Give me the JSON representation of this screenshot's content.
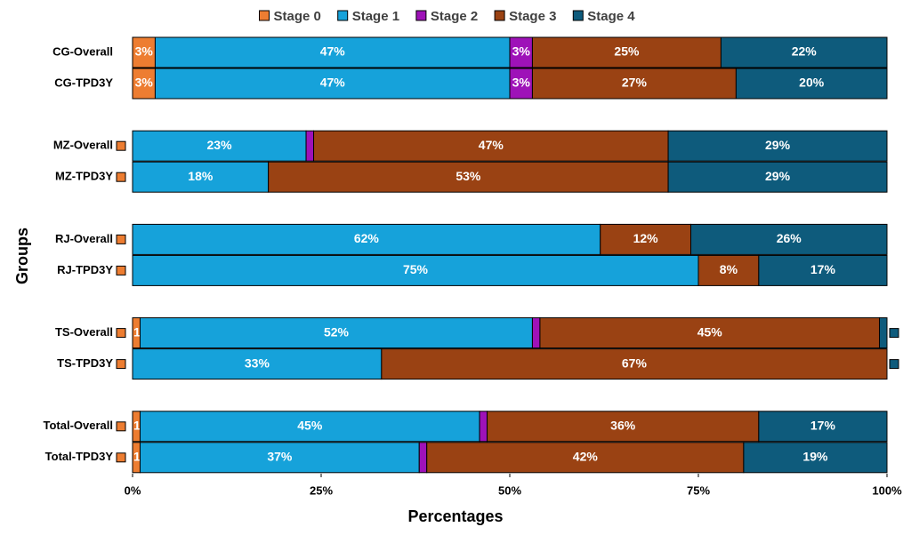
{
  "chart_data": {
    "type": "stacked_barh",
    "x_label": "Percentages",
    "y_label": "Groups",
    "categories": [
      "CG-Overall",
      "CG-TPD3Y",
      "MZ-Overall",
      "MZ-TPD3Y",
      "RJ-Overall",
      "RJ-TPD3Y",
      "TS-Overall",
      "TS-TPD3Y",
      "Total-Overall",
      "Total-TPD3Y"
    ],
    "series": [
      {
        "name": "Stage 0",
        "color": "#ED7D31",
        "values": [
          3,
          3,
          0,
          0,
          0,
          0,
          1,
          0,
          1,
          1
        ],
        "value_labels": [
          "3%",
          "3%",
          "0%",
          "0%",
          "0%",
          "0%",
          "1%",
          "0%",
          "1%",
          "1%"
        ]
      },
      {
        "name": "Stage 1",
        "color": "#16A2DA",
        "values": [
          47,
          47,
          23,
          18,
          62,
          75,
          52,
          33,
          45,
          37
        ],
        "value_labels": [
          "47%",
          "47%",
          "23%",
          "18%",
          "62%",
          "75%",
          "52%",
          "33%",
          "45%",
          "37%"
        ]
      },
      {
        "name": "Stage 2",
        "color": "#9E12B8",
        "values": [
          3,
          3,
          1,
          0,
          0,
          0,
          1,
          0,
          1,
          1
        ],
        "value_labels": [
          "3%",
          "3%",
          "1%",
          "0%",
          "0%",
          "0%",
          "1%",
          "0%",
          "1%",
          "1%"
        ]
      },
      {
        "name": "Stage 3",
        "color": "#9A4213",
        "values": [
          25,
          27,
          47,
          53,
          12,
          8,
          45,
          67,
          36,
          42
        ],
        "value_labels": [
          "25%",
          "27%",
          "47%",
          "53%",
          "12%",
          "8%",
          "45%",
          "67%",
          "36%",
          "42%"
        ]
      },
      {
        "name": "Stage 4",
        "color": "#0E5B7C",
        "values": [
          22,
          20,
          29,
          29,
          26,
          17,
          1,
          0,
          17,
          19
        ],
        "value_labels": [
          "22%",
          "20%",
          "29%",
          "29%",
          "26%",
          "17%",
          "1%",
          "0%",
          "17%",
          "19%"
        ]
      }
    ],
    "xlim": [
      0,
      100
    ],
    "xticks": [
      {
        "value": 0,
        "label": "0%"
      },
      {
        "value": 25,
        "label": "25%"
      },
      {
        "value": 50,
        "label": "50%"
      },
      {
        "value": 75,
        "label": "75%"
      },
      {
        "value": 100,
        "label": "100%"
      }
    ],
    "legend": "top"
  }
}
